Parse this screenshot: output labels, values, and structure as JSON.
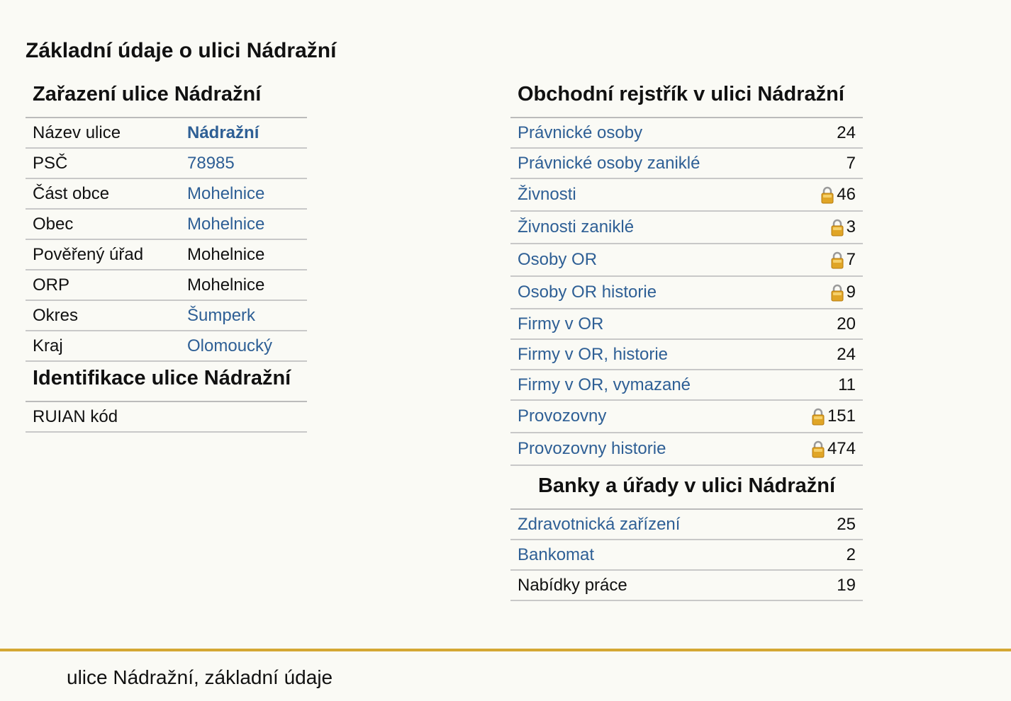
{
  "page": {
    "title": "Základní údaje o ulici Nádražní"
  },
  "left": {
    "zarazeni_title": "Zařazení ulice Nádražní",
    "zarazeni_rows": [
      {
        "label": "Název ulice",
        "value": "Nádražní",
        "link": true,
        "bold": true
      },
      {
        "label": "PSČ",
        "value": "78985",
        "link": true
      },
      {
        "label": "Část obce",
        "value": "Mohelnice",
        "link": true
      },
      {
        "label": "Obec",
        "value": "Mohelnice",
        "link": true
      },
      {
        "label": "Pověřený úřad",
        "value": "Mohelnice",
        "link": false
      },
      {
        "label": "ORP",
        "value": "Mohelnice",
        "link": false
      },
      {
        "label": "Okres",
        "value": "Šumperk",
        "link": true
      },
      {
        "label": "Kraj",
        "value": "Olomoucký",
        "link": true
      }
    ],
    "identifikace_title": "Identifikace ulice Nádražní",
    "identifikace_rows": [
      {
        "label": "RUIAN kód",
        "value": "",
        "link": false
      }
    ]
  },
  "right": {
    "or_title": "Obchodní rejstřík v ulici Nádražní",
    "or_rows": [
      {
        "label": "Právnické osoby",
        "count": "24",
        "lock": false,
        "link": true
      },
      {
        "label": "Právnické osoby zaniklé",
        "count": "7",
        "lock": false,
        "link": true
      },
      {
        "label": "Živnosti",
        "count": "46",
        "lock": true,
        "link": true
      },
      {
        "label": "Živnosti zaniklé",
        "count": "3",
        "lock": true,
        "link": true
      },
      {
        "label": "Osoby OR",
        "count": "7",
        "lock": true,
        "link": true
      },
      {
        "label": "Osoby OR historie",
        "count": "9",
        "lock": true,
        "link": true
      },
      {
        "label": "Firmy v OR",
        "count": "20",
        "lock": false,
        "link": true
      },
      {
        "label": "Firmy v OR, historie",
        "count": "24",
        "lock": false,
        "link": true
      },
      {
        "label": "Firmy v OR, vymazané",
        "count": "11",
        "lock": false,
        "link": true
      },
      {
        "label": "Provozovny",
        "count": "151",
        "lock": true,
        "link": true
      },
      {
        "label": "Provozovny historie",
        "count": "474",
        "lock": true,
        "link": true
      }
    ],
    "banky_title": "Banky a úřady v ulici Nádražní",
    "banky_rows": [
      {
        "label": "Zdravotnická zařízení",
        "count": "25",
        "lock": false,
        "link": true
      },
      {
        "label": "Bankomat",
        "count": "2",
        "lock": false,
        "link": true
      },
      {
        "label": "Nabídky práce",
        "count": "19",
        "lock": false,
        "link": false
      }
    ]
  },
  "footer": {
    "text": "ulice Nádražní, základní údaje"
  },
  "colors": {
    "link": "#2e5f95",
    "footer_rule": "#d4a733",
    "background": "#fafaf5"
  },
  "icons": {
    "lock": "lock-icon"
  }
}
